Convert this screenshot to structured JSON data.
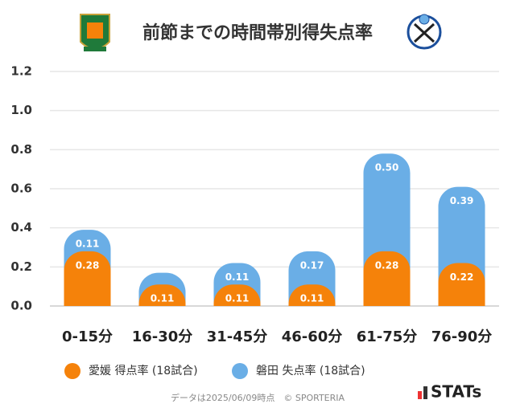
{
  "chart_data": {
    "type": "stacked_bar",
    "title": "前節までの時間帯別得失点率",
    "categories": [
      "0-15分",
      "16-30分",
      "31-45分",
      "46-60分",
      "61-75分",
      "76-90分"
    ],
    "series": [
      {
        "name": "愛媛 得点率 (18試合)",
        "color": "#f5820a",
        "values": [
          0.28,
          0.11,
          0.11,
          0.11,
          0.28,
          0.22
        ],
        "value_labels": [
          "0.28",
          "0.11",
          "0.11",
          "0.11",
          "0.28",
          "0.22"
        ]
      },
      {
        "name": "磐田 失点率 (18試合)",
        "color": "#6aaee6",
        "values": [
          0.11,
          0.06,
          0.11,
          0.17,
          0.5,
          0.39
        ],
        "value_labels": [
          "0.11",
          null,
          "0.11",
          "0.17",
          "0.50",
          "0.39"
        ]
      }
    ],
    "ylim": [
      0,
      1.2
    ],
    "yticks": [
      {
        "value": 0,
        "label": "0.0"
      },
      0.2,
      0.4,
      0.6,
      0.8,
      {
        "value": 1,
        "label": "1.0"
      },
      1.2
    ],
    "grid": true,
    "footer": "データは2025/06/09時点　© SPORTERIA",
    "brand": "STATs"
  }
}
